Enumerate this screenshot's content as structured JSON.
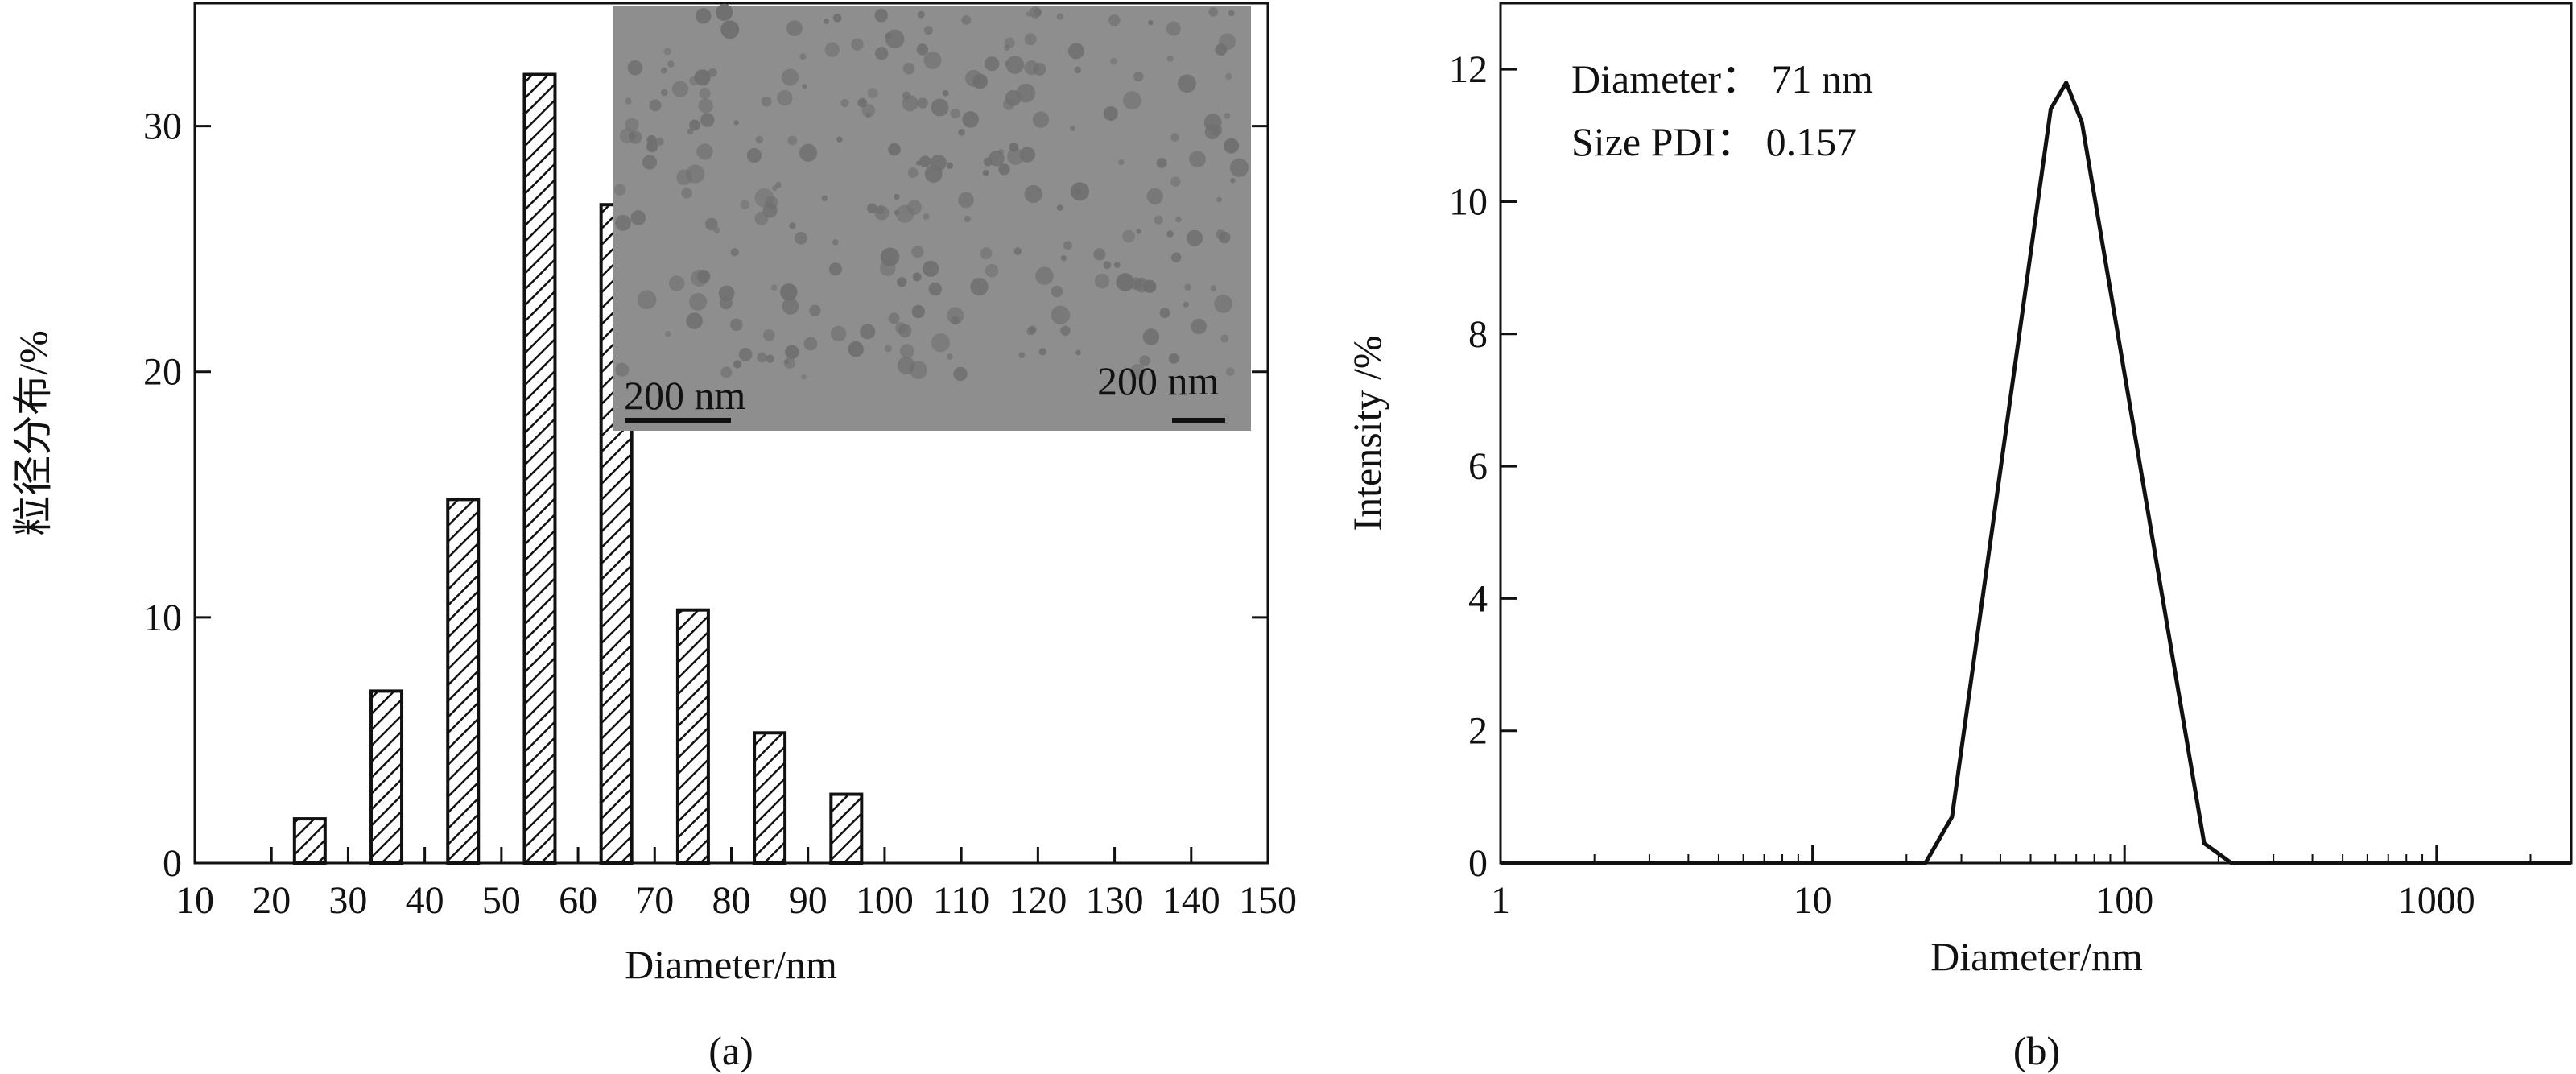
{
  "panels": {
    "a_label": "(a)",
    "b_label": "(b)"
  },
  "colors": {
    "axis": "#111111",
    "bar_stroke": "#111111",
    "line": "#111111",
    "inset_bg": "#8e8e8e",
    "particle": "#6f6f6f"
  },
  "inset": {
    "scale_label_left": "200 nm",
    "scale_label_right": "200 nm"
  },
  "chart_data": [
    {
      "type": "bar",
      "ylabel": "粒径分布/%",
      "xlabel": "Diameter/nm",
      "xlim": [
        10,
        150
      ],
      "ylim": [
        0,
        35
      ],
      "xticks": [
        10,
        20,
        30,
        40,
        50,
        60,
        70,
        80,
        90,
        100,
        110,
        120,
        130,
        140,
        150
      ],
      "yticks": [
        0,
        10,
        20,
        30
      ],
      "x": [
        25,
        35,
        45,
        55,
        65,
        75,
        85,
        95
      ],
      "values": [
        1.8,
        7.0,
        14.8,
        32.1,
        26.8,
        10.3,
        5.3,
        2.8
      ],
      "pattern": "diagonal hatch"
    },
    {
      "type": "line",
      "ylabel": "Intensity /%",
      "xlabel": "Diameter/nm",
      "xscale": "log",
      "xlim": [
        1,
        2700
      ],
      "ylim": [
        0,
        13
      ],
      "xticks": [
        1,
        10,
        100,
        1000
      ],
      "yticks": [
        0,
        2,
        4,
        6,
        8,
        10,
        12
      ],
      "x": [
        1,
        23,
        28,
        58,
        65,
        73,
        180,
        220,
        2700
      ],
      "values": [
        0,
        0,
        0.7,
        11.4,
        11.8,
        11.2,
        0.3,
        0,
        0
      ],
      "annotations": [
        "Diameter：  71 nm",
        "Size PDI：  0.157"
      ]
    }
  ]
}
